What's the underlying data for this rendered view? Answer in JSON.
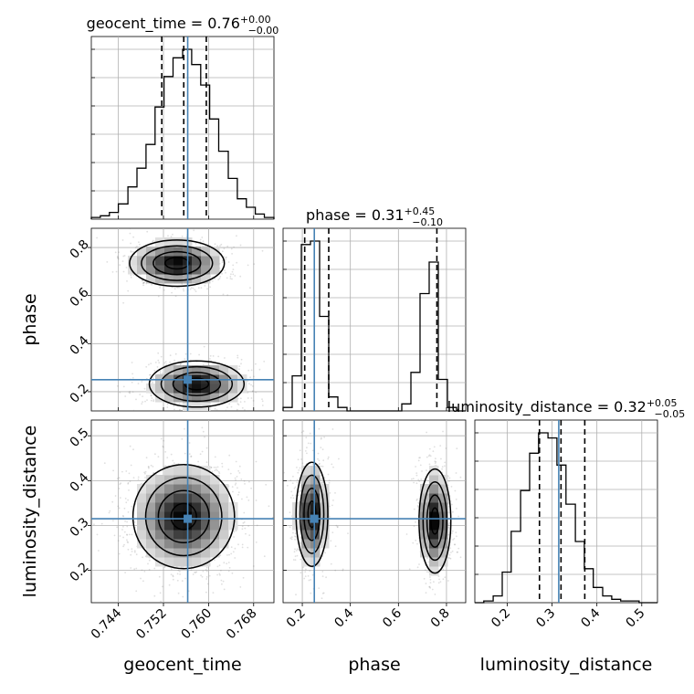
{
  "chart_data": {
    "type": "corner",
    "parameters": [
      {
        "name": "geocent_time",
        "label": "geocent_time",
        "range": [
          0.7392,
          0.7716
        ],
        "ticks": [
          0.744,
          0.752,
          0.76,
          0.768
        ],
        "tick_labels": [
          "0.744",
          "0.752",
          "0.760",
          "0.768"
        ],
        "truth": 0.7563,
        "quantiles": [
          0.7517,
          0.7556,
          0.7596
        ],
        "title_main": "geocent_time = 0.76",
        "title_sup": "+0.00",
        "title_sub": "−0.00",
        "histogram": {
          "edges": [
            0.7392,
            0.7408,
            0.7424,
            0.744,
            0.7457,
            0.7473,
            0.7489,
            0.7505,
            0.7521,
            0.7537,
            0.7554,
            0.757,
            0.7586,
            0.7602,
            0.7618,
            0.7635,
            0.7651,
            0.7667,
            0.7683,
            0.7699,
            0.7716
          ],
          "counts": [
            0.01,
            0.02,
            0.04,
            0.09,
            0.19,
            0.3,
            0.44,
            0.66,
            0.84,
            0.95,
            1.0,
            0.91,
            0.79,
            0.59,
            0.4,
            0.24,
            0.12,
            0.07,
            0.03,
            0.01
          ]
        }
      },
      {
        "name": "phase",
        "label": "phase",
        "range": [
          0.12,
          0.88
        ],
        "ticks": [
          0.2,
          0.4,
          0.6,
          0.8
        ],
        "tick_labels": [
          "0.2",
          "0.4",
          "0.6",
          "0.8"
        ],
        "truth": 0.25,
        "quantiles": [
          0.21,
          0.31,
          0.76
        ],
        "title_main": "phase = 0.31",
        "title_sup": "+0.45",
        "title_sub": "−0.10",
        "histogram": {
          "edges": [
            0.12,
            0.158,
            0.196,
            0.234,
            0.272,
            0.31,
            0.348,
            0.386,
            0.424,
            0.462,
            0.5,
            0.538,
            0.576,
            0.614,
            0.652,
            0.69,
            0.728,
            0.766,
            0.804,
            0.842,
            0.88
          ],
          "counts": [
            0.02,
            0.2,
            0.95,
            0.97,
            0.54,
            0.08,
            0.02,
            0,
            0,
            0,
            0,
            0,
            0,
            0.04,
            0.22,
            0.67,
            0.85,
            0.18,
            0.02,
            0
          ]
        }
      },
      {
        "name": "luminosity_distance",
        "label": "luminosity_distance",
        "range": [
          0.128,
          0.535
        ],
        "ticks": [
          0.2,
          0.3,
          0.4,
          0.5
        ],
        "tick_labels": [
          "0.2",
          "0.3",
          "0.4",
          "0.5"
        ],
        "truth": 0.315,
        "quantiles": [
          0.272,
          0.32,
          0.373
        ],
        "title_main": "luminosity_distance = 0.32",
        "title_sup": "+0.05",
        "title_sub": "−0.05",
        "histogram": {
          "edges": [
            0.128,
            0.148,
            0.169,
            0.189,
            0.209,
            0.23,
            0.25,
            0.27,
            0.291,
            0.311,
            0.331,
            0.352,
            0.372,
            0.392,
            0.413,
            0.433,
            0.453,
            0.474,
            0.494,
            0.514,
            0.535
          ],
          "counts": [
            0,
            0.01,
            0.04,
            0.18,
            0.42,
            0.66,
            0.88,
            1.0,
            0.97,
            0.81,
            0.58,
            0.36,
            0.2,
            0.09,
            0.04,
            0.02,
            0.01,
            0.01,
            0,
            0
          ]
        }
      }
    ],
    "pairs": [
      {
        "x": "geocent_time",
        "y": "phase",
        "modes": [
          {
            "cx": 0.7544,
            "cy": 0.735,
            "sx": 0.0042,
            "sy": 0.048,
            "weight": 0.5
          },
          {
            "cx": 0.7579,
            "cy": 0.232,
            "sx": 0.0042,
            "sy": 0.048,
            "weight": 0.5
          }
        ]
      },
      {
        "x": "geocent_time",
        "y": "luminosity_distance",
        "modes": [
          {
            "cx": 0.7556,
            "cy": 0.32,
            "sx": 0.0045,
            "sy": 0.058,
            "weight": 1.0
          }
        ]
      },
      {
        "x": "phase",
        "y": "luminosity_distance",
        "modes": [
          {
            "cx": 0.24,
            "cy": 0.325,
            "sx": 0.033,
            "sy": 0.058,
            "weight": 0.5
          },
          {
            "cx": 0.752,
            "cy": 0.31,
            "sx": 0.033,
            "sy": 0.058,
            "weight": 0.5
          }
        ]
      }
    ],
    "grid": true,
    "truth_color": "#4682b4",
    "hist_color": "#000000"
  }
}
